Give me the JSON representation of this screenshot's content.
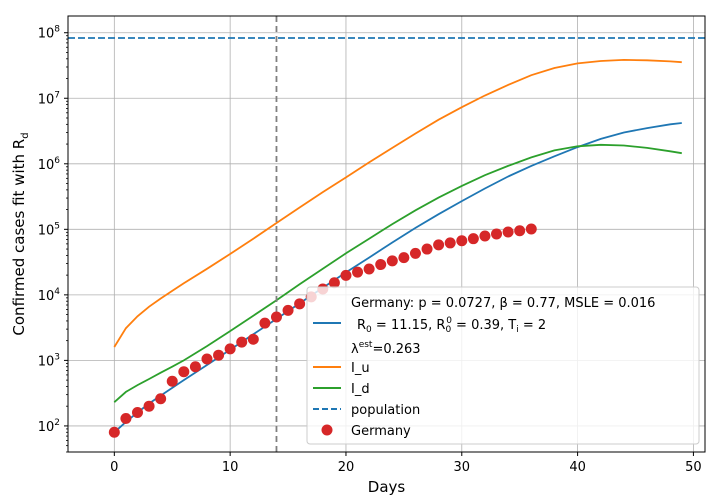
{
  "chart_data": {
    "type": "line",
    "xlabel": "Days",
    "ylabel": "Confirmed cases fit with R_d",
    "yscale": "log",
    "xlim": [
      -4,
      51
    ],
    "ylim": [
      40,
      180000000
    ],
    "xticks": [
      0,
      10,
      20,
      30,
      40,
      50
    ],
    "yticks": [
      100,
      1000,
      10000,
      100000,
      1000000,
      10000000,
      100000000
    ],
    "ytick_labels": [
      {
        "base": "10",
        "exp": "2"
      },
      {
        "base": "10",
        "exp": "3"
      },
      {
        "base": "10",
        "exp": "4"
      },
      {
        "base": "10",
        "exp": "5"
      },
      {
        "base": "10",
        "exp": "6"
      },
      {
        "base": "10",
        "exp": "7"
      },
      {
        "base": "10",
        "exp": "8"
      }
    ],
    "grid": true,
    "legend_position": "lower-right",
    "vline": {
      "x": 14,
      "color": "#7f7f7f",
      "style": "dashed"
    },
    "legend": {
      "fit_line1": "Germany: p = 0.0727,  β =  0.77, MSLE = 0.016",
      "fit_line2_r0": "R",
      "fit_line2_r0_sub": "0",
      "fit_line2_r0_val": " = 11.15, R",
      "fit_line2_r00_sub": "0",
      "fit_line2_r00_sup": "0",
      "fit_line2_r00_val": " = 0.39, T",
      "fit_line2_ti_sub": "i",
      "fit_line2_ti_val": " = 2",
      "fit_line3_lambda": "λ",
      "fit_line3_sup": "est",
      "fit_line3_val": "=0.263",
      "iu": "I_u",
      "id": "I_d",
      "population": "population",
      "germany": "Germany"
    },
    "series": [
      {
        "name": "fit",
        "color": "#1f77b4",
        "x": [
          0,
          1,
          2,
          3,
          4,
          5,
          6,
          8,
          10,
          12,
          14,
          16,
          18,
          20,
          22,
          24,
          26,
          28,
          30,
          32,
          34,
          36,
          38,
          40,
          42,
          44,
          46,
          48,
          49
        ],
        "values": [
          80,
          115,
          160,
          220,
          290,
          380,
          500,
          850,
          1450,
          2500,
          4300,
          7400,
          12800,
          22000,
          37000,
          63000,
          105000,
          170000,
          270000,
          420000,
          640000,
          930000,
          1300000,
          1800000,
          2400000,
          3000000,
          3500000,
          4000000,
          4200000
        ]
      },
      {
        "name": "I_u",
        "color": "#ff7f0e",
        "x": [
          0,
          1,
          2,
          3,
          4,
          5,
          6,
          8,
          10,
          12,
          14,
          16,
          18,
          20,
          22,
          24,
          26,
          28,
          30,
          32,
          34,
          36,
          38,
          40,
          42,
          44,
          46,
          48,
          49
        ],
        "values": [
          1600,
          3100,
          4700,
          6600,
          8800,
          11500,
          15000,
          25000,
          42000,
          72000,
          125000,
          215000,
          370000,
          620000,
          1050000,
          1750000,
          2900000,
          4700000,
          7300000,
          11000000,
          16000000,
          22500000,
          29000000,
          34000000,
          37000000,
          38500000,
          38000000,
          36500000,
          35500000
        ]
      },
      {
        "name": "I_d",
        "color": "#2ca02c",
        "x": [
          0,
          1,
          2,
          3,
          4,
          5,
          6,
          8,
          10,
          12,
          14,
          16,
          18,
          20,
          22,
          24,
          26,
          28,
          30,
          32,
          34,
          36,
          38,
          40,
          42,
          44,
          46,
          48,
          49
        ],
        "values": [
          230,
          330,
          420,
          520,
          650,
          800,
          1000,
          1650,
          2800,
          4800,
          8300,
          14500,
          25000,
          43000,
          72000,
          120000,
          195000,
          305000,
          460000,
          670000,
          930000,
          1250000,
          1600000,
          1850000,
          1950000,
          1900000,
          1750000,
          1550000,
          1450000
        ]
      },
      {
        "name": "population",
        "color": "#1f77b4",
        "style": "dashed",
        "x": [
          -4,
          51
        ],
        "values": [
          83000000,
          83000000
        ]
      },
      {
        "name": "Germany",
        "color": "#d62728",
        "marker": "circle",
        "x": [
          0,
          1,
          2,
          3,
          4,
          5,
          6,
          7,
          8,
          9,
          10,
          11,
          12,
          13,
          14,
          15,
          16,
          17,
          18,
          19,
          20,
          21,
          22,
          23,
          24,
          25,
          26,
          27,
          28,
          29,
          30,
          31,
          32,
          33,
          34,
          35,
          36
        ],
        "values": [
          80,
          130,
          160,
          200,
          260,
          480,
          670,
          800,
          1050,
          1200,
          1500,
          1900,
          2100,
          3700,
          4600,
          5800,
          7300,
          9300,
          12300,
          15300,
          19800,
          22200,
          24800,
          29000,
          33000,
          37000,
          43000,
          50000,
          58000,
          62000,
          67000,
          72000,
          79000,
          85000,
          91000,
          95000,
          101000
        ]
      }
    ]
  }
}
